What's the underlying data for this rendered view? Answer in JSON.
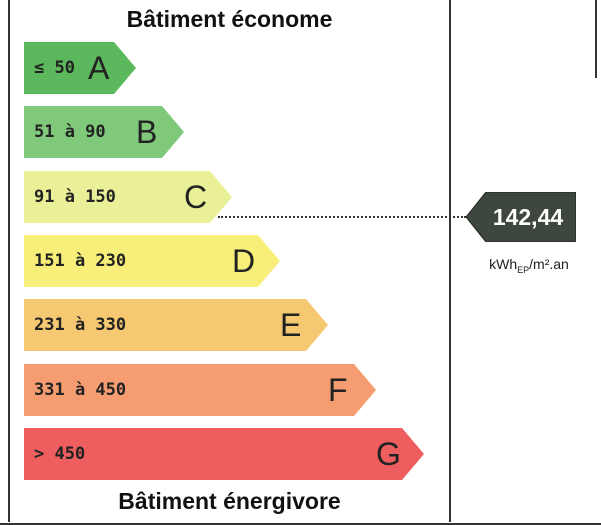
{
  "header": {
    "title": "Bâtiment économe"
  },
  "footer": {
    "title": "Bâtiment énergivore"
  },
  "classes": [
    {
      "letter": "A",
      "range": "≤ 50",
      "color": "#5cb85c"
    },
    {
      "letter": "B",
      "range": "51 à 90",
      "color": "#80c97a"
    },
    {
      "letter": "C",
      "range": "91 à 150",
      "color": "#eaf098"
    },
    {
      "letter": "D",
      "range": "151 à 230",
      "color": "#f7ef7a"
    },
    {
      "letter": "E",
      "range": "231 à 330",
      "color": "#f5c871"
    },
    {
      "letter": "F",
      "range": "331 à 450",
      "color": "#f59d70"
    },
    {
      "letter": "G",
      "range": "> 450",
      "color": "#ee5e5e"
    }
  ],
  "indicator": {
    "value": "142,44",
    "unit_main": "kWh",
    "unit_sub": "EP",
    "unit_tail": "/m².an",
    "class": "C",
    "color": "#3e473d"
  }
}
